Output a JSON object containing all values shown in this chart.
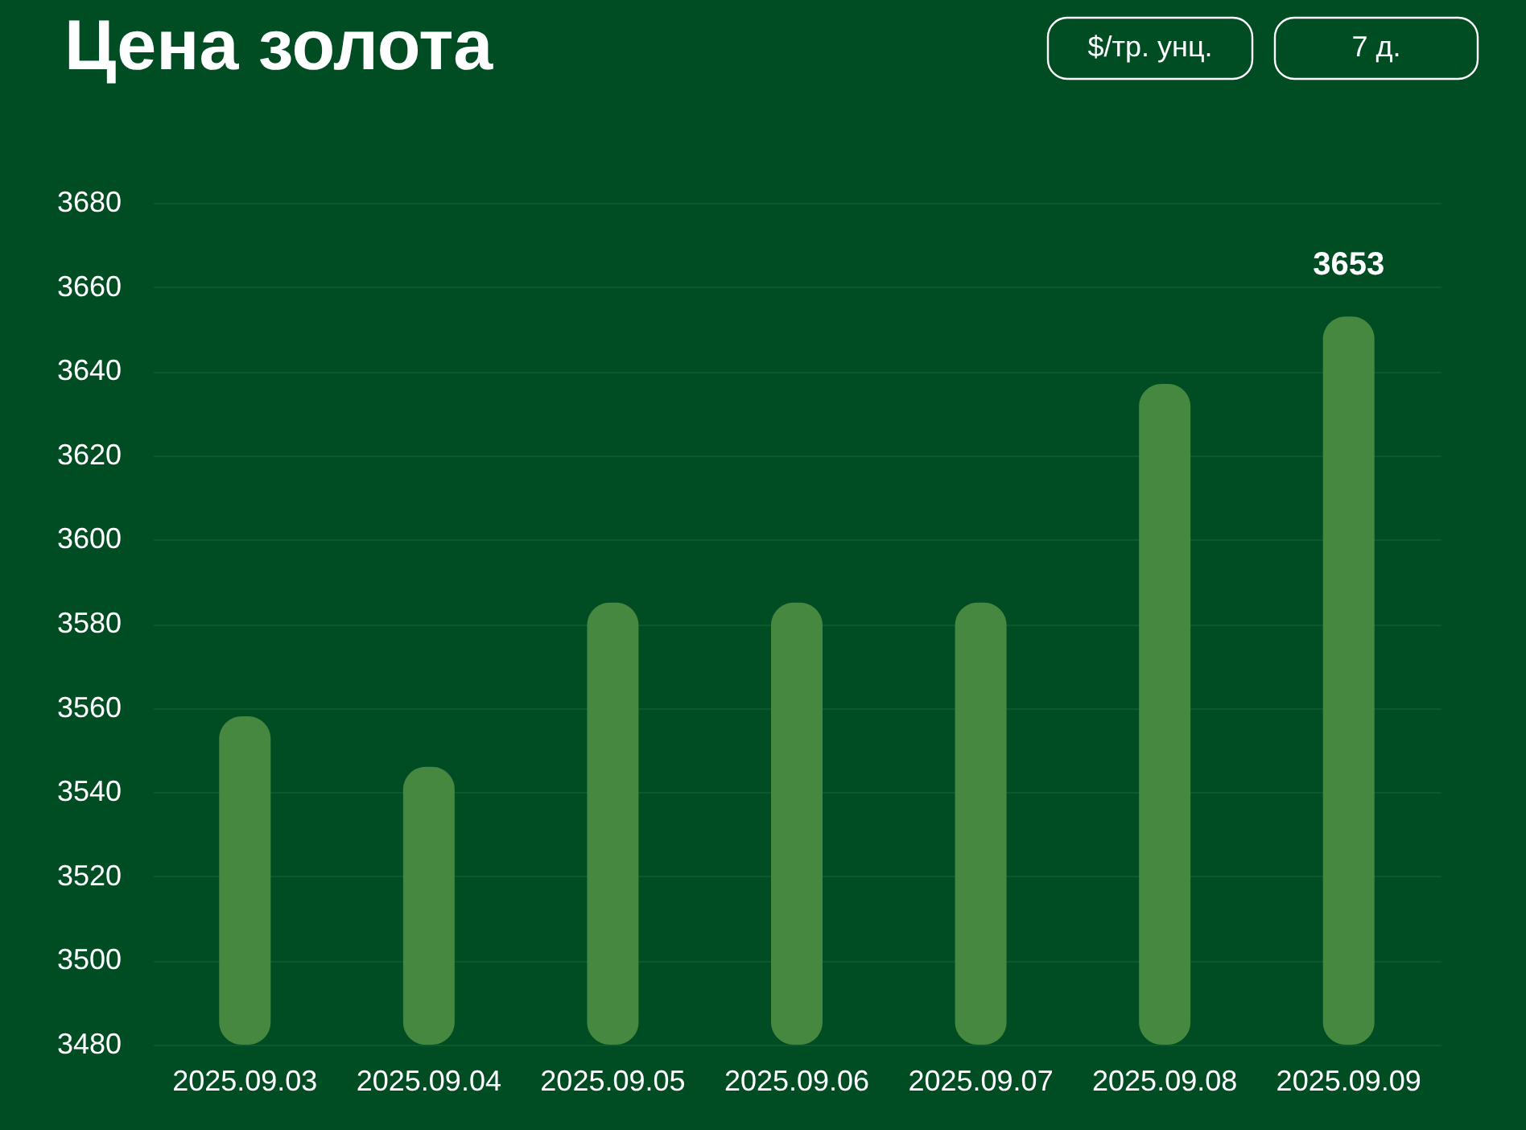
{
  "chart_data": {
    "type": "bar",
    "title": "Цена золота",
    "categories": [
      "2025.09.03",
      "2025.09.04",
      "2025.09.05",
      "2025.09.06",
      "2025.09.07",
      "2025.09.08",
      "2025.09.09"
    ],
    "values": [
      3558,
      3546,
      3585,
      3585,
      3585,
      3637,
      3653
    ],
    "value_labels": [
      null,
      null,
      null,
      null,
      null,
      null,
      "3653"
    ],
    "color": "#46883f",
    "ylim": [
      3480,
      3680
    ],
    "yticks": [
      3480,
      3500,
      3520,
      3540,
      3560,
      3580,
      3600,
      3620,
      3640,
      3660,
      3680
    ],
    "grid": "y",
    "annotations": [
      "$/тр. унц.",
      "7 д."
    ]
  }
}
